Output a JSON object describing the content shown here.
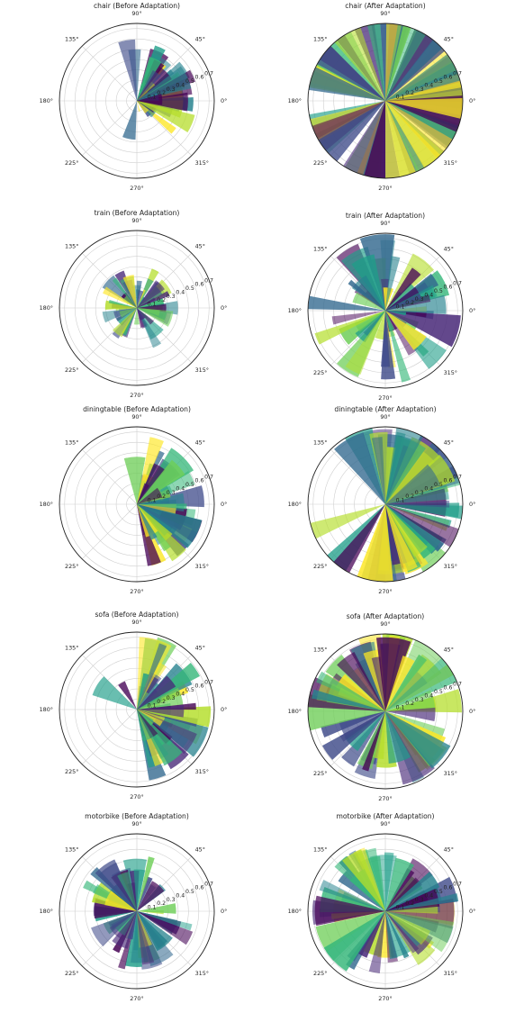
{
  "chart_data": [
    {
      "type": "polar-bar",
      "title": "chair (Before Adaptation)",
      "angular_ticks": [
        "0°",
        "45°",
        "90°",
        "135°",
        "180°",
        "225°",
        "270°",
        "315°"
      ],
      "radial_ticks": [
        "0.1",
        "0.2",
        "0.3",
        "0.4",
        "0.5",
        "0.6",
        "0.7"
      ],
      "rmax": 0.75,
      "colormap": "viridis",
      "n_bars": 60,
      "seed": 11,
      "bias_deg": 10,
      "spread": 0.32,
      "base_r": 0.1,
      "amp": 0.5
    },
    {
      "type": "polar-bar",
      "title": "chair (After Adaptation)",
      "angular_ticks": [
        "0°",
        "45°",
        "90°",
        "135°",
        "180°",
        "225°",
        "270°",
        "315°"
      ],
      "radial_ticks": [
        "0.1",
        "0.2",
        "0.3",
        "0.4",
        "0.5",
        "0.6",
        "0.7"
      ],
      "rmax": 0.75,
      "colormap": "viridis",
      "n_bars": 60,
      "seed": 12,
      "bias_deg": null,
      "spread": 1.0,
      "base_r": 0.75,
      "amp": 0.0
    },
    {
      "type": "polar-bar",
      "title": "train (Before Adaptation)",
      "angular_ticks": [
        "0°",
        "45°",
        "90°",
        "135°",
        "180°",
        "225°",
        "270°",
        "315°"
      ],
      "radial_ticks": [
        "0.1",
        "0.2",
        "0.3",
        "0.4",
        "0.5",
        "0.6",
        "0.7"
      ],
      "rmax": 0.75,
      "colormap": "viridis",
      "n_bars": 60,
      "seed": 21,
      "bias_deg": null,
      "spread": 1.0,
      "base_r": 0.12,
      "amp": 0.3
    },
    {
      "type": "polar-bar",
      "title": "train (After Adaptation)",
      "angular_ticks": [
        "0°",
        "45°",
        "90°",
        "135°",
        "180°",
        "225°",
        "270°",
        "315°"
      ],
      "radial_ticks": [
        "0.1",
        "0.2",
        "0.3",
        "0.4",
        "0.5",
        "0.6",
        "0.7"
      ],
      "rmax": 0.75,
      "colormap": "viridis",
      "n_bars": 60,
      "seed": 22,
      "bias_deg": null,
      "spread": 1.0,
      "base_r": 0.2,
      "amp": 0.55
    },
    {
      "type": "polar-bar",
      "title": "diningtable (Before Adaptation)",
      "angular_ticks": [
        "0°",
        "45°",
        "90°",
        "135°",
        "180°",
        "225°",
        "270°",
        "315°"
      ],
      "radial_ticks": [
        "0.1",
        "0.2",
        "0.3",
        "0.4",
        "0.5",
        "0.6",
        "0.7"
      ],
      "rmax": 0.75,
      "colormap": "viridis",
      "n_bars": 60,
      "seed": 31,
      "bias_deg": 0,
      "spread": 0.42,
      "base_r": 0.18,
      "amp": 0.5
    },
    {
      "type": "polar-bar",
      "title": "diningtable (After Adaptation)",
      "angular_ticks": [
        "0°",
        "45°",
        "90°",
        "135°",
        "180°",
        "225°",
        "270°",
        "315°"
      ],
      "radial_ticks": [
        "0.1",
        "0.2",
        "0.3",
        "0.4",
        "0.5",
        "0.6",
        "0.7"
      ],
      "rmax": 0.75,
      "colormap": "viridis",
      "n_bars": 60,
      "seed": 32,
      "bias_deg": 0,
      "spread": 0.55,
      "base_r": 0.55,
      "amp": 0.25
    },
    {
      "type": "polar-bar",
      "title": "sofa (Before Adaptation)",
      "angular_ticks": [
        "0°",
        "45°",
        "90°",
        "135°",
        "180°",
        "225°",
        "270°",
        "315°"
      ],
      "radial_ticks": [
        "0.1",
        "0.2",
        "0.3",
        "0.4",
        "0.5",
        "0.6",
        "0.7"
      ],
      "rmax": 0.75,
      "colormap": "viridis",
      "n_bars": 60,
      "seed": 41,
      "bias_deg": 0,
      "spread": 0.42,
      "base_r": 0.18,
      "amp": 0.55
    },
    {
      "type": "polar-bar",
      "title": "sofa (After Adaptation)",
      "angular_ticks": [
        "0°",
        "45°",
        "90°",
        "135°",
        "180°",
        "225°",
        "270°",
        "315°"
      ],
      "radial_ticks": [
        "0.1",
        "0.2",
        "0.3",
        "0.4",
        "0.5",
        "0.6",
        "0.7"
      ],
      "rmax": 0.75,
      "colormap": "viridis",
      "n_bars": 60,
      "seed": 42,
      "bias_deg": null,
      "spread": 1.0,
      "base_r": 0.45,
      "amp": 0.35
    },
    {
      "type": "polar-bar",
      "title": "motorbike (Before Adaptation)",
      "angular_ticks": [
        "0°",
        "45°",
        "90°",
        "135°",
        "180°",
        "225°",
        "270°",
        "315°"
      ],
      "radial_ticks": [
        "0.1",
        "0.2",
        "0.3",
        "0.4",
        "0.5",
        "0.6",
        "0.7"
      ],
      "rmax": 0.75,
      "colormap": "viridis",
      "n_bars": 60,
      "seed": 51,
      "bias_deg": null,
      "spread": 1.0,
      "base_r": 0.25,
      "amp": 0.35
    },
    {
      "type": "polar-bar",
      "title": "motorbike (After Adaptation)",
      "angular_ticks": [
        "0°",
        "45°",
        "90°",
        "135°",
        "180°",
        "225°",
        "270°",
        "315°"
      ],
      "radial_ticks": [
        "0.1",
        "0.2",
        "0.3",
        "0.4",
        "0.5",
        "0.6",
        "0.7"
      ],
      "rmax": 0.75,
      "colormap": "viridis",
      "n_bars": 60,
      "seed": 52,
      "bias_deg": null,
      "spread": 1.0,
      "base_r": 0.42,
      "amp": 0.3
    }
  ]
}
